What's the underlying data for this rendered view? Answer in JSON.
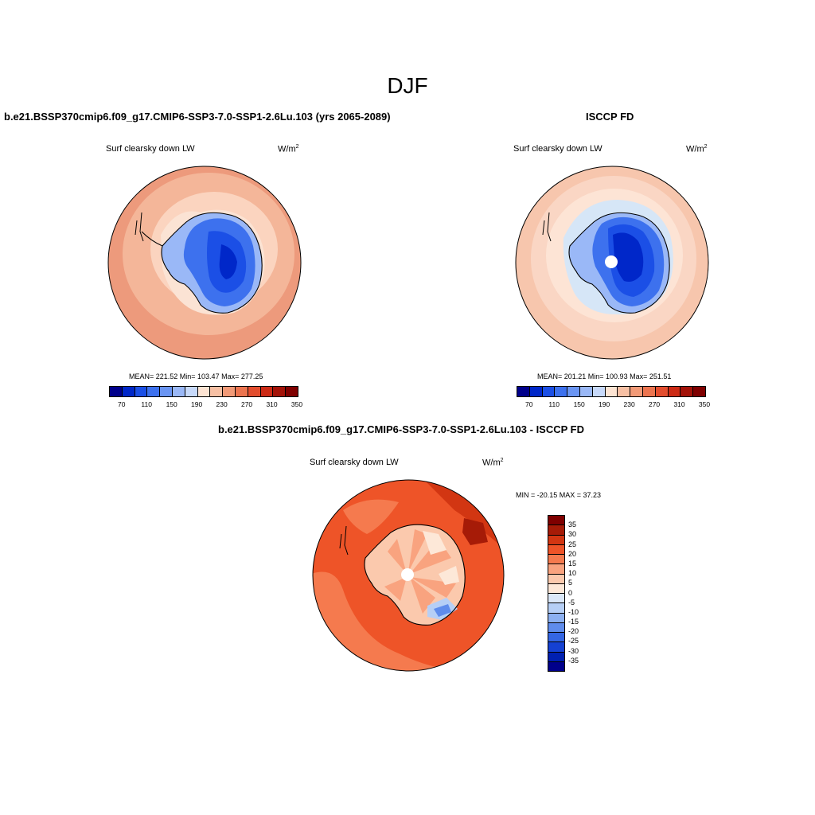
{
  "figure": {
    "title": "DJF"
  },
  "panels": [
    {
      "title": "b.e21.BSSP370cmip6.f09_g17.CMIP6-SSP3-7.0-SSP1-2.6Lu.103 (yrs 2065-2089)",
      "variable": "Surf clearsky down LW",
      "units_base": "W/m",
      "units_exp": "2",
      "stats": "MEAN= 221.52  Min= 103.47  Max= 277.25",
      "ocean_colors": [
        "#ed9a7c",
        "#f4b699",
        "#fbd4bf",
        "#fbe3d4"
      ]
    },
    {
      "title": "ISCCP FD",
      "variable": "Surf clearsky down LW",
      "units_base": "W/m",
      "units_exp": "2",
      "stats": "MEAN= 201.21  Min= 100.93  Max= 251.51",
      "ocean_colors": [
        "#f7c6ad",
        "#fad6c4",
        "#fde4d5",
        "#d6e6f7"
      ]
    },
    {
      "title": "b.e21.BSSP370cmip6.f09_g17.CMIP6-SSP3-7.0-SSP1-2.6Lu.103 - ISCCP FD",
      "variable": "Surf clearsky down LW",
      "units_base": "W/m",
      "units_exp": "2",
      "stats": "MIN = -20.15 MAX =  37.23"
    }
  ],
  "colorbar_abs": {
    "colors": [
      "#00008b",
      "#0027c9",
      "#1b4fe6",
      "#3d71ee",
      "#6a95f3",
      "#9ab8f7",
      "#c7d9fa",
      "#fde4d3",
      "#f7c0a4",
      "#f29a77",
      "#ec744f",
      "#e34d2e",
      "#cc2a15",
      "#a31208",
      "#7f0000"
    ],
    "ticks": [
      "70",
      "110",
      "150",
      "190",
      "230",
      "270",
      "310",
      "350"
    ]
  },
  "colorbar_diff": {
    "colors": [
      "#7f0000",
      "#a61b07",
      "#d23612",
      "#ee5428",
      "#f57a4e",
      "#f9a37f",
      "#fbc9ad",
      "#fde8d8",
      "#dbe8f9",
      "#b6cff6",
      "#8cb0f1",
      "#5f8cec",
      "#3466e4",
      "#1541d2",
      "#0020b0",
      "#00008b"
    ],
    "ticks": [
      "35",
      "30",
      "25",
      "20",
      "15",
      "10",
      "5",
      "0",
      "-5",
      "-10",
      "-15",
      "-20",
      "-25",
      "-30",
      "-35"
    ]
  }
}
